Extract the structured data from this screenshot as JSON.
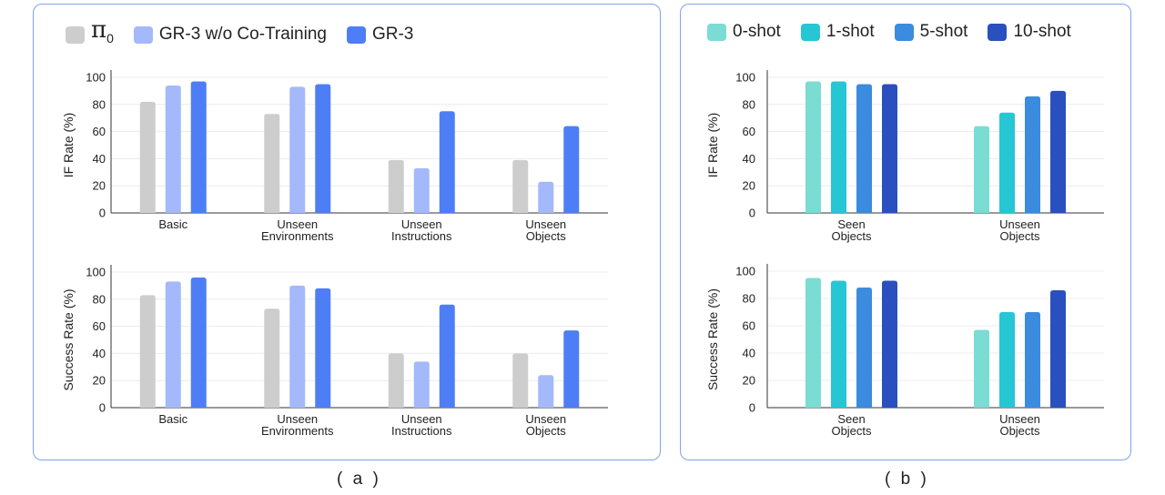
{
  "legend_a": {
    "items": [
      {
        "symbol": "π",
        "subscript": "0",
        "color": "#cdcdcd"
      },
      {
        "label": "GR-3 w/o Co-Training",
        "color": "#a3b9fa"
      },
      {
        "label": "GR-3",
        "color": "#4e7ef5"
      }
    ]
  },
  "legend_b": {
    "items": [
      {
        "label": "0-shot",
        "color": "#7adcd2"
      },
      {
        "label": "1-shot",
        "color": "#26c6d4"
      },
      {
        "label": "5-shot",
        "color": "#3b8bde"
      },
      {
        "label": "10-shot",
        "color": "#2a50bf"
      }
    ]
  },
  "captions": {
    "a": "( a )",
    "b": "( b )"
  },
  "chart_data": [
    {
      "id": "a-if",
      "type": "bar",
      "panel": "a",
      "title": "",
      "xlabel": "",
      "ylabel": "IF Rate (%)",
      "ylim": [
        0,
        100
      ],
      "yticks": [
        "0",
        "20",
        "40",
        "60",
        "80",
        "100"
      ],
      "categories": [
        [
          "Basic"
        ],
        [
          "Unseen",
          "Environments"
        ],
        [
          "Unseen",
          "Instructions"
        ],
        [
          "Unseen",
          "Objects"
        ]
      ],
      "series": [
        {
          "name": "π0",
          "color": "#cdcdcd",
          "values": [
            82,
            73,
            39,
            39
          ]
        },
        {
          "name": "GR-3 w/o Co-Training",
          "color": "#a3b9fa",
          "values": [
            94,
            93,
            33,
            23
          ]
        },
        {
          "name": "GR-3",
          "color": "#4e7ef5",
          "values": [
            97,
            95,
            75,
            64
          ]
        }
      ]
    },
    {
      "id": "a-success",
      "type": "bar",
      "panel": "a",
      "title": "",
      "xlabel": "",
      "ylabel": "Success Rate (%)",
      "ylim": [
        0,
        100
      ],
      "yticks": [
        "0",
        "20",
        "40",
        "60",
        "80",
        "100"
      ],
      "categories": [
        [
          "Basic"
        ],
        [
          "Unseen",
          "Environments"
        ],
        [
          "Unseen",
          "Instructions"
        ],
        [
          "Unseen",
          "Objects"
        ]
      ],
      "series": [
        {
          "name": "π0",
          "color": "#cdcdcd",
          "values": [
            83,
            73,
            40,
            40
          ]
        },
        {
          "name": "GR-3 w/o Co-Training",
          "color": "#a3b9fa",
          "values": [
            93,
            90,
            34,
            24
          ]
        },
        {
          "name": "GR-3",
          "color": "#4e7ef5",
          "values": [
            96,
            88,
            76,
            57
          ]
        }
      ]
    },
    {
      "id": "b-if",
      "type": "bar",
      "panel": "b",
      "title": "",
      "xlabel": "",
      "ylabel": "IF Rate (%)",
      "ylim": [
        0,
        100
      ],
      "yticks": [
        "0",
        "20",
        "40",
        "60",
        "80",
        "100"
      ],
      "categories": [
        [
          "Seen",
          "Objects"
        ],
        [
          "Unseen",
          "Objects"
        ]
      ],
      "series": [
        {
          "name": "0-shot",
          "color": "#7adcd2",
          "values": [
            97,
            64
          ]
        },
        {
          "name": "1-shot",
          "color": "#26c6d4",
          "values": [
            97,
            74
          ]
        },
        {
          "name": "5-shot",
          "color": "#3b8bde",
          "values": [
            95,
            86
          ]
        },
        {
          "name": "10-shot",
          "color": "#2a50bf",
          "values": [
            95,
            90
          ]
        }
      ]
    },
    {
      "id": "b-success",
      "type": "bar",
      "panel": "b",
      "title": "",
      "xlabel": "",
      "ylabel": "Success Rate (%)",
      "ylim": [
        0,
        100
      ],
      "yticks": [
        "0",
        "20",
        "40",
        "60",
        "80",
        "100"
      ],
      "categories": [
        [
          "Seen",
          "Objects"
        ],
        [
          "Unseen",
          "Objects"
        ]
      ],
      "series": [
        {
          "name": "0-shot",
          "color": "#7adcd2",
          "values": [
            95,
            57
          ]
        },
        {
          "name": "1-shot",
          "color": "#26c6d4",
          "values": [
            93,
            70
          ]
        },
        {
          "name": "5-shot",
          "color": "#3b8bde",
          "values": [
            88,
            70
          ]
        },
        {
          "name": "10-shot",
          "color": "#2a50bf",
          "values": [
            93,
            86
          ]
        }
      ]
    }
  ]
}
